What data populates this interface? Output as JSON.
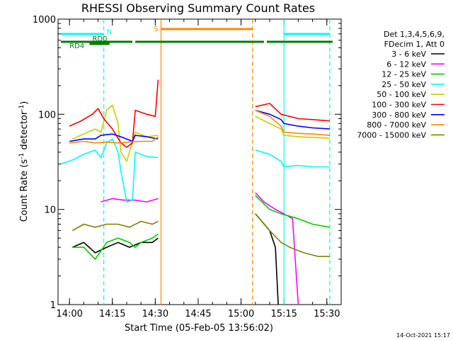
{
  "chart_data": {
    "type": "line",
    "title": "RHESSI Observing Summary Count Rates",
    "xlabel": "Start Time (05-Feb-05 13:56:02)",
    "ylabel_main": "Count Rate (s",
    "ylabel_sup1": "-1",
    "ylabel_mid": " detector",
    "ylabel_sup2": "-1",
    "ylabel_end": ")",
    "timestamp": "14-Oct-2021 15:17",
    "x_axis": {
      "start": "13:56:02",
      "min_min": 836,
      "max_min": 935,
      "ticks": [
        {
          "t": 840,
          "label": "14:00"
        },
        {
          "t": 855,
          "label": "14:15"
        },
        {
          "t": 870,
          "label": "14:30"
        },
        {
          "t": 885,
          "label": "14:45"
        },
        {
          "t": 900,
          "label": "15:00"
        },
        {
          "t": 915,
          "label": "15:15"
        },
        {
          "t": 930,
          "label": "15:30"
        }
      ]
    },
    "y_axis": {
      "scale": "log",
      "min": 1,
      "max": 1000,
      "ticks": [
        {
          "v": 1,
          "label": "1"
        },
        {
          "v": 10,
          "label": "10"
        },
        {
          "v": 100,
          "label": "100"
        },
        {
          "v": 1000,
          "label": "1000"
        }
      ]
    },
    "grid": false,
    "legend": {
      "position": "right",
      "header": [
        "Det 1,3,4,5,6,9,",
        "FDecim 1, Att 0"
      ]
    },
    "series": [
      {
        "name": "3 - 6 keV",
        "color": "#000000",
        "segments": [
          [
            [
              841,
              4
            ],
            [
              845,
              4.5
            ],
            [
              849,
              3.5
            ],
            [
              853,
              4
            ],
            [
              857,
              4.5
            ],
            [
              861,
              4
            ],
            [
              865,
              4.5
            ],
            [
              869,
              4.5
            ],
            [
              871,
              5
            ]
          ],
          [
            [
              905,
              9
            ],
            [
              910,
              6
            ],
            [
              912,
              4
            ],
            [
              913,
              1
            ]
          ]
        ]
      },
      {
        "name": "6 - 12 keV",
        "color": "#ff00ff",
        "segments": [
          [
            [
              851,
              12
            ],
            [
              855,
              13
            ],
            [
              859,
              12.5
            ],
            [
              863,
              12.5
            ],
            [
              867,
              12
            ],
            [
              871,
              13
            ]
          ],
          [
            [
              905,
              15
            ],
            [
              908,
              12
            ],
            [
              912,
              10
            ],
            [
              915,
              9
            ],
            [
              918,
              8
            ],
            [
              920,
              1
            ]
          ]
        ]
      },
      {
        "name": "12 - 25 keV",
        "color": "#00cc00",
        "segments": [
          [
            [
              841,
              4
            ],
            [
              845,
              4
            ],
            [
              849,
              3
            ],
            [
              853,
              4.5
            ],
            [
              857,
              5
            ],
            [
              861,
              4.5
            ],
            [
              863,
              4
            ],
            [
              865,
              4.5
            ],
            [
              869,
              5
            ],
            [
              871,
              5.5
            ]
          ],
          [
            [
              905,
              14
            ],
            [
              910,
              10
            ],
            [
              914,
              9
            ],
            [
              920,
              8
            ],
            [
              925,
              7
            ],
            [
              931,
              6.5
            ]
          ]
        ]
      },
      {
        "name": "25 - 50 keV",
        "color": "#00ffff",
        "segments": [
          [
            [
              837,
              30
            ],
            [
              841,
              33
            ],
            [
              845,
              38
            ],
            [
              849,
              42
            ],
            [
              851,
              35
            ],
            [
              853,
              50
            ],
            [
              855,
              55
            ],
            [
              857,
              40
            ],
            [
              858,
              25
            ],
            [
              860,
              12
            ],
            [
              862,
              12.5
            ],
            [
              863,
              40
            ],
            [
              867,
              36
            ],
            [
              871,
              35
            ]
          ],
          [
            [
              905,
              42
            ],
            [
              910,
              38
            ],
            [
              914,
              32
            ],
            [
              915,
              28
            ],
            [
              920,
              29
            ],
            [
              925,
              28
            ],
            [
              931,
              28
            ]
          ]
        ]
      },
      {
        "name": "50 - 100 keV",
        "color": "#cccc00",
        "segments": [
          [
            [
              841,
              55
            ],
            [
              845,
              62
            ],
            [
              849,
              70
            ],
            [
              851,
              65
            ],
            [
              853,
              110
            ],
            [
              855,
              125
            ],
            [
              857,
              80
            ],
            [
              858,
              40
            ],
            [
              860,
              32
            ],
            [
              863,
              65
            ],
            [
              867,
              58
            ],
            [
              871,
              60
            ]
          ],
          [
            [
              905,
              95
            ],
            [
              910,
              80
            ],
            [
              914,
              70
            ],
            [
              915,
              60
            ],
            [
              920,
              58
            ],
            [
              925,
              57
            ],
            [
              931,
              56
            ]
          ]
        ]
      },
      {
        "name": "100 - 300 keV",
        "color": "#ff0000",
        "segments": [
          [
            [
              840,
              75
            ],
            [
              844,
              85
            ],
            [
              848,
              100
            ],
            [
              850,
              115
            ],
            [
              852,
              90
            ],
            [
              855,
              70
            ],
            [
              858,
              50
            ],
            [
              860,
              45
            ],
            [
              862,
              50
            ],
            [
              863,
              110
            ],
            [
              867,
              100
            ],
            [
              870,
              95
            ],
            [
              871,
              230
            ]
          ],
          [
            [
              905,
              120
            ],
            [
              910,
              130
            ],
            [
              914,
              100
            ],
            [
              920,
              90
            ],
            [
              925,
              88
            ],
            [
              931,
              85
            ]
          ]
        ]
      },
      {
        "name": "300 - 800 keV",
        "color": "#0000ff",
        "segments": [
          [
            [
              840,
              52
            ],
            [
              845,
              55
            ],
            [
              849,
              55
            ],
            [
              851,
              60
            ],
            [
              855,
              62
            ],
            [
              858,
              58
            ],
            [
              862,
              52
            ],
            [
              863,
              60
            ],
            [
              867,
              58
            ],
            [
              871,
              55
            ]
          ],
          [
            [
              905,
              110
            ],
            [
              910,
              100
            ],
            [
              914,
              88
            ],
            [
              915,
              80
            ],
            [
              920,
              75
            ],
            [
              925,
              72
            ],
            [
              931,
              70
            ]
          ]
        ]
      },
      {
        "name": "800 - 7000 keV",
        "color": "#ff8800",
        "segments": [
          [
            [
              840,
              50
            ],
            [
              845,
              52
            ],
            [
              849,
              50
            ],
            [
              853,
              51
            ],
            [
              857,
              50
            ],
            [
              861,
              51
            ],
            [
              865,
              52
            ],
            [
              869,
              52
            ],
            [
              871,
              58
            ]
          ],
          [
            [
              905,
              110
            ],
            [
              910,
              95
            ],
            [
              914,
              75
            ],
            [
              915,
              65
            ],
            [
              920,
              63
            ],
            [
              925,
              62
            ],
            [
              931,
              60
            ]
          ]
        ]
      },
      {
        "name": "7000 - 15000 keV",
        "color": "#808000",
        "segments": [
          [
            [
              841,
              6
            ],
            [
              845,
              7
            ],
            [
              849,
              6.5
            ],
            [
              853,
              7
            ],
            [
              857,
              7
            ],
            [
              861,
              6.5
            ],
            [
              865,
              7.5
            ],
            [
              869,
              7
            ],
            [
              871,
              7.5
            ]
          ],
          [
            [
              905,
              9
            ],
            [
              910,
              6
            ],
            [
              914,
              4.5
            ],
            [
              917,
              4
            ],
            [
              922,
              3.5
            ],
            [
              927,
              3.2
            ],
            [
              931,
              3.2
            ]
          ]
        ]
      }
    ],
    "flags": {
      "N": {
        "label": "N",
        "color": "#00ffff",
        "spans": [
          {
            "start": 837,
            "end": 852
          },
          {
            "start": 915,
            "end": 931
          }
        ]
      },
      "RD0": {
        "label": "RD0",
        "color": "#008000",
        "spans": [
          {
            "start": 847,
            "end": 854
          }
        ]
      },
      "RD4": {
        "label": "RD4",
        "color": "#008000",
        "spans": [
          {
            "start": 837,
            "end": 847
          },
          {
            "start": 847,
            "end": 862
          },
          {
            "start": 863,
            "end": 904
          },
          {
            "start": 904,
            "end": 908
          },
          {
            "start": 909,
            "end": 932
          }
        ]
      },
      "S": {
        "label": "S",
        "color": "#ff8800",
        "spans": [
          {
            "start": 872,
            "end": 904
          }
        ]
      }
    },
    "vlines": [
      {
        "t": 852,
        "color": "#00ffff",
        "style": "dashed"
      },
      {
        "t": 872,
        "color": "#ff8800",
        "style": "solid"
      },
      {
        "t": 904,
        "color": "#ff8800",
        "style": "dashed"
      },
      {
        "t": 915,
        "color": "#00ffff",
        "style": "solid"
      },
      {
        "t": 931,
        "color": "#00ffff",
        "style": "dashed"
      }
    ]
  }
}
